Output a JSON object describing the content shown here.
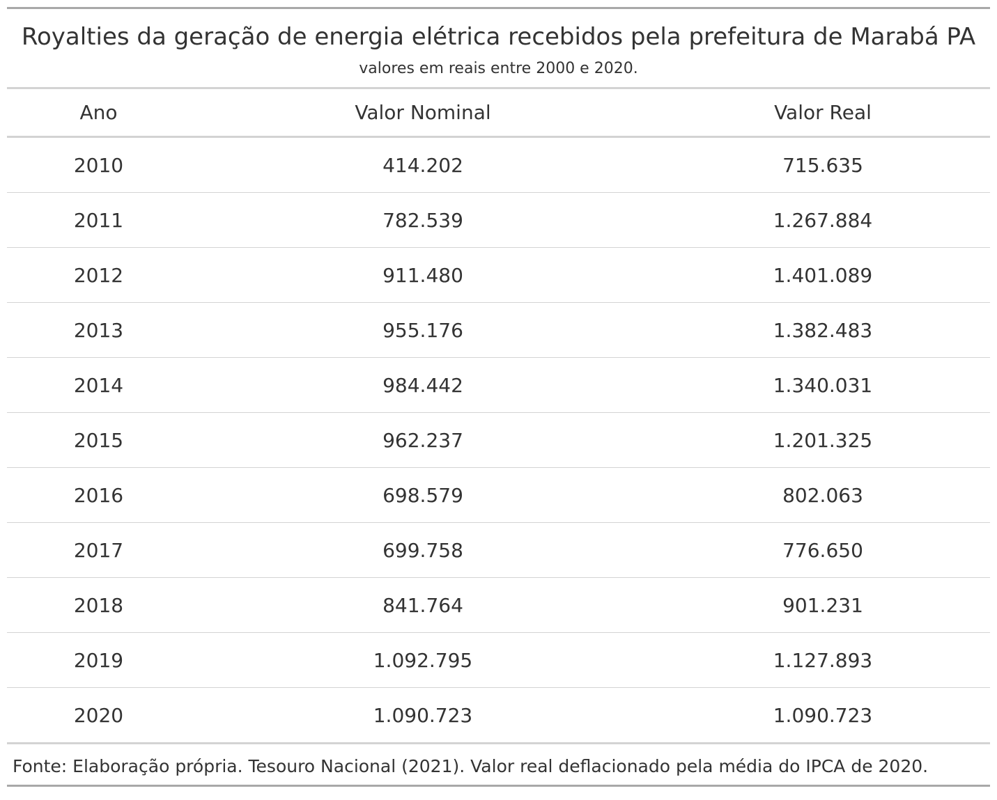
{
  "title": "Royalties da geração de energia elétrica recebidos pela prefeitura de Marabá PA",
  "subtitle": "valores em reais entre 2000 e 2020.",
  "columns": [
    "Ano",
    "Valor Nominal",
    "Valor Real"
  ],
  "rows": [
    {
      "ano": "2010",
      "nominal": "414.202",
      "real": "715.635"
    },
    {
      "ano": "2011",
      "nominal": "782.539",
      "real": "1.267.884"
    },
    {
      "ano": "2012",
      "nominal": "911.480",
      "real": "1.401.089"
    },
    {
      "ano": "2013",
      "nominal": "955.176",
      "real": "1.382.483"
    },
    {
      "ano": "2014",
      "nominal": "984.442",
      "real": "1.340.031"
    },
    {
      "ano": "2015",
      "nominal": "962.237",
      "real": "1.201.325"
    },
    {
      "ano": "2016",
      "nominal": "698.579",
      "real": "802.063"
    },
    {
      "ano": "2017",
      "nominal": "699.758",
      "real": "776.650"
    },
    {
      "ano": "2018",
      "nominal": "841.764",
      "real": "901.231"
    },
    {
      "ano": "2019",
      "nominal": "1.092.795",
      "real": "1.127.893"
    },
    {
      "ano": "2020",
      "nominal": "1.090.723",
      "real": "1.090.723"
    }
  ],
  "source_note": "Fonte: Elaboração própria. Tesouro Nacional (2021). Valor real deflacionado pela média do IPCA de 2020.",
  "colors": {
    "text": "#333333",
    "outer_rule": "#a8a8a8",
    "inner_rule": "#d3d3d3"
  }
}
